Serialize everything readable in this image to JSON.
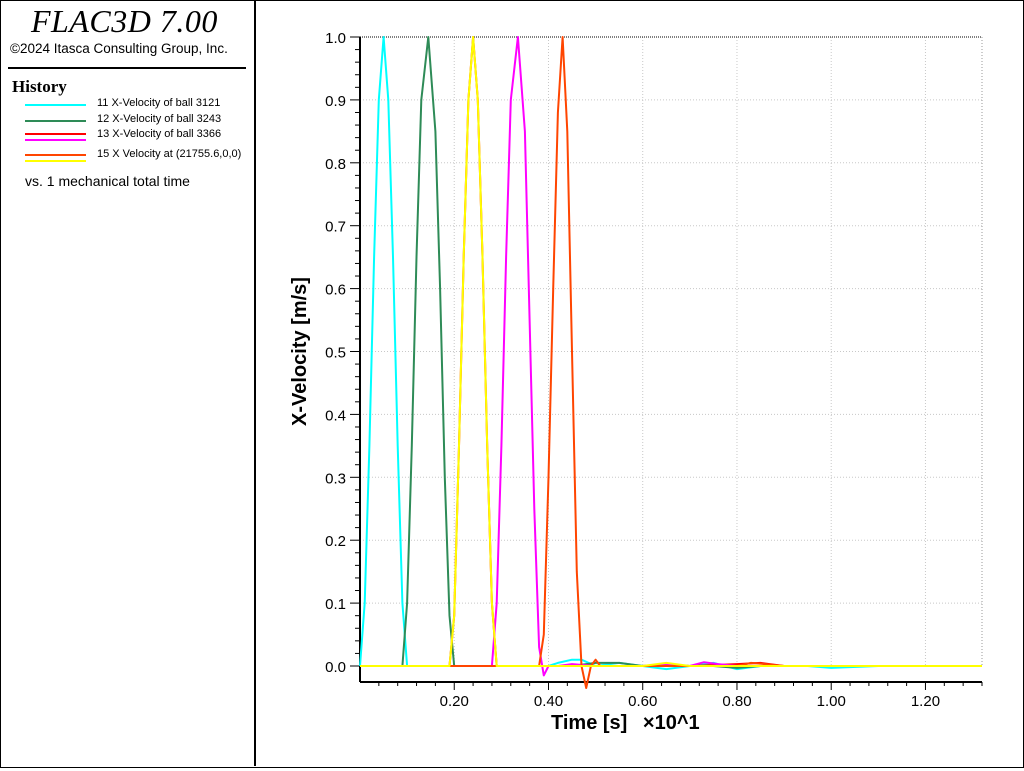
{
  "app": {
    "title": "FLAC3D 7.00",
    "copyright": "©2024 Itasca Consulting Group, Inc."
  },
  "legend": {
    "heading": "History",
    "entries": [
      {
        "label": "11 X-Velocity of ball 3121",
        "colors": [
          "#00ffff"
        ]
      },
      {
        "label": "12 X-Velocity of ball 3243",
        "colors": [
          "#2e8b57"
        ]
      },
      {
        "label": "13 X-Velocity of ball 3366",
        "colors": [
          "#ff0000",
          "#ff00ff"
        ]
      },
      {
        "label": "15 X Velocity at (21755.6,0,0)",
        "colors": [
          "#ff4500",
          "#ffff00"
        ]
      }
    ],
    "vs": "vs. 1 mechanical total time"
  },
  "chart_data": {
    "type": "line",
    "xlabel": "Time [s]",
    "xlabel_suffix": "×10^1",
    "ylabel": "X-Velocity [m/s]",
    "xlim": [
      0.0,
      1.32
    ],
    "ylim": [
      0.0,
      1.0
    ],
    "x_ticks": [
      0.2,
      0.4,
      0.6,
      0.8,
      1.0,
      1.2
    ],
    "x_tick_labels": [
      "0.20",
      "0.40",
      "0.60",
      "0.80",
      "1.00",
      "1.20"
    ],
    "y_ticks": [
      0.0,
      0.1,
      0.2,
      0.3,
      0.4,
      0.5,
      0.6,
      0.7,
      0.8,
      0.9,
      1.0
    ],
    "y_tick_labels": [
      "0.0",
      "0.1",
      "0.2",
      "0.3",
      "0.4",
      "0.5",
      "0.6",
      "0.7",
      "0.8",
      "0.9",
      "1.0"
    ],
    "grid": true,
    "series": [
      {
        "name": "11 X-Velocity of ball 3121",
        "color": "#00ffff",
        "x": [
          0.0,
          0.01,
          0.02,
          0.03,
          0.04,
          0.05,
          0.06,
          0.07,
          0.08,
          0.09,
          0.1,
          0.2,
          0.3,
          0.4,
          0.42,
          0.45,
          0.47,
          0.5,
          0.55,
          0.6,
          0.65,
          0.7,
          0.75,
          0.8,
          0.85,
          0.9,
          0.95,
          1.0,
          1.1,
          1.2,
          1.32
        ],
        "y": [
          0.0,
          0.1,
          0.35,
          0.65,
          0.9,
          1.0,
          0.9,
          0.65,
          0.35,
          0.1,
          0.0,
          0.0,
          0.0,
          0.0,
          0.005,
          0.01,
          0.01,
          0.0,
          0.005,
          0.0,
          -0.005,
          0.0,
          0.005,
          -0.005,
          0.0,
          0.0,
          0.0,
          -0.003,
          0.0,
          0.0,
          0.0
        ]
      },
      {
        "name": "12 X-Velocity of ball 3243",
        "color": "#2e8b57",
        "x": [
          0.0,
          0.09,
          0.1,
          0.11,
          0.12,
          0.13,
          0.145,
          0.16,
          0.17,
          0.18,
          0.19,
          0.2,
          0.3,
          0.4,
          0.45,
          0.5,
          0.55,
          0.6,
          0.65,
          0.7,
          0.75,
          0.8,
          0.85,
          0.9,
          1.0,
          1.1,
          1.2,
          1.32
        ],
        "y": [
          0.0,
          0.0,
          0.1,
          0.35,
          0.65,
          0.9,
          1.0,
          0.85,
          0.6,
          0.3,
          0.08,
          0.0,
          0.0,
          0.0,
          0.0,
          0.005,
          0.005,
          0.0,
          0.003,
          0.0,
          0.0,
          -0.003,
          0.0,
          0.0,
          0.0,
          0.0,
          0.0,
          0.0
        ]
      },
      {
        "name": "13 X-Velocity of ball 3366",
        "color": "#ff0000",
        "x": [
          0.0,
          0.19,
          0.2,
          0.21,
          0.22,
          0.23,
          0.24,
          0.25,
          0.26,
          0.27,
          0.28,
          0.29,
          0.3,
          0.4,
          0.5,
          0.6,
          0.7,
          0.8,
          0.85,
          0.9,
          1.0,
          1.1,
          1.2,
          1.32
        ],
        "y": [
          0.0,
          0.0,
          0.08,
          0.35,
          0.65,
          0.9,
          1.0,
          0.9,
          0.65,
          0.35,
          0.1,
          0.0,
          0.0,
          0.0,
          0.0,
          0.0,
          0.0,
          0.003,
          0.005,
          0.0,
          0.0,
          0.0,
          0.0,
          0.0
        ]
      },
      {
        "name": "13 X-Velocity of ball 3366",
        "color": "#ff00ff",
        "x": [
          0.0,
          0.28,
          0.29,
          0.3,
          0.31,
          0.32,
          0.335,
          0.35,
          0.36,
          0.37,
          0.38,
          0.39,
          0.4,
          0.42,
          0.45,
          0.5,
          0.6,
          0.65,
          0.7,
          0.73,
          0.76,
          0.8,
          0.9,
          1.0,
          1.1,
          1.2,
          1.32
        ],
        "y": [
          0.0,
          0.0,
          0.1,
          0.35,
          0.65,
          0.9,
          1.0,
          0.85,
          0.55,
          0.25,
          0.03,
          -0.015,
          0.0,
          0.0,
          0.003,
          0.0,
          0.0,
          0.003,
          0.0,
          0.006,
          0.003,
          0.0,
          0.0,
          0.0,
          0.0,
          0.0,
          0.0
        ]
      },
      {
        "name": "15 X Velocity at (21755.6,0,0)",
        "color": "#ff4500",
        "x": [
          0.0,
          0.38,
          0.39,
          0.4,
          0.41,
          0.42,
          0.43,
          0.44,
          0.45,
          0.46,
          0.47,
          0.48,
          0.49,
          0.5,
          0.51,
          0.55,
          0.6,
          0.7,
          0.8,
          0.83,
          0.86,
          0.9,
          1.0,
          1.1,
          1.2,
          1.32
        ],
        "y": [
          0.0,
          0.0,
          0.05,
          0.3,
          0.6,
          0.88,
          1.0,
          0.85,
          0.5,
          0.15,
          0.0,
          -0.035,
          0.0,
          0.01,
          0.0,
          0.0,
          0.0,
          0.0,
          0.0,
          0.005,
          0.003,
          0.0,
          0.0,
          0.0,
          0.0,
          0.0
        ]
      },
      {
        "name": "15 X Velocity at (21755.6,0,0)",
        "color": "#ffff00",
        "x": [
          0.0,
          0.19,
          0.2,
          0.21,
          0.22,
          0.23,
          0.24,
          0.25,
          0.26,
          0.27,
          0.28,
          0.29,
          0.3,
          0.4,
          0.5,
          0.6,
          0.65,
          0.7,
          0.8,
          0.9,
          1.0,
          1.1,
          1.2,
          1.32
        ],
        "y": [
          0.0,
          0.0,
          0.08,
          0.35,
          0.65,
          0.9,
          1.0,
          0.9,
          0.65,
          0.35,
          0.1,
          0.0,
          0.0,
          0.0,
          0.0,
          0.0,
          0.005,
          0.0,
          0.0,
          0.0,
          0.0,
          0.0,
          0.0,
          0.0
        ]
      }
    ]
  }
}
